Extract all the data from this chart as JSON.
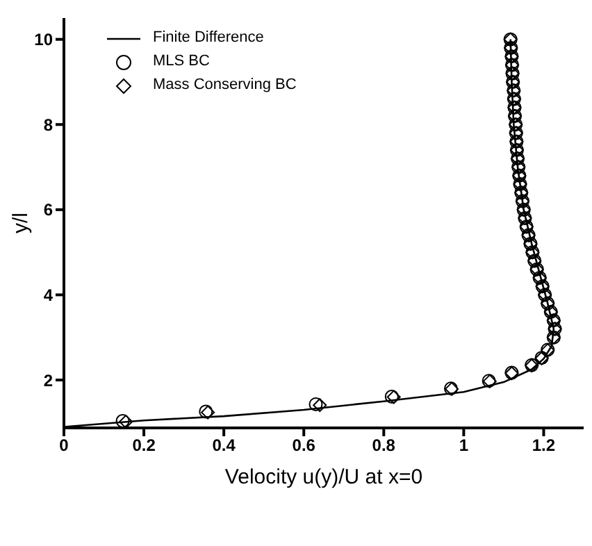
{
  "chart_data": {
    "type": "line",
    "xlabel": "Velocity u(y)/U at x=0",
    "ylabel": "y/l",
    "xlim": [
      0,
      1.3
    ],
    "xticks": [
      0,
      0.2,
      0.4,
      0.6,
      0.8,
      1,
      1.2
    ],
    "ylim": [
      0.875,
      10.5
    ],
    "yticks": [
      2,
      4,
      6,
      8,
      10
    ],
    "grid": false,
    "legend": "top left",
    "series": [
      {
        "name": "Finite Difference",
        "marker": "none",
        "line_style": "solid",
        "color": "#000000",
        "x": [
          0,
          0.2,
          0.4,
          0.6,
          0.8,
          1.0,
          1.1,
          1.17,
          1.2,
          1.22,
          1.225,
          1.21,
          1.19,
          1.17,
          1.15,
          1.135,
          1.125,
          1.12,
          1.117
        ],
        "values": [
          0.9,
          1.05,
          1.15,
          1.3,
          1.5,
          1.72,
          1.95,
          2.25,
          2.5,
          2.8,
          3.2,
          3.8,
          4.5,
          5.2,
          6,
          7,
          8,
          9,
          10
        ]
      },
      {
        "name": "MLS BC",
        "type": "scatter",
        "marker": "circle",
        "color": "#000000",
        "x": [
          0.147,
          0.355,
          0.63,
          0.82,
          0.968,
          1.063,
          1.12,
          1.17,
          1.195,
          1.21,
          1.225,
          1.228,
          1.225,
          1.218,
          1.21,
          1.203,
          1.197,
          1.19,
          1.183,
          1.177,
          1.172,
          1.167,
          1.162,
          1.157,
          1.153,
          1.15,
          1.147,
          1.144,
          1.141,
          1.139,
          1.137,
          1.135,
          1.133,
          1.132,
          1.131,
          1.13,
          1.128,
          1.127,
          1.126,
          1.125,
          1.123,
          1.122,
          1.121,
          1.12,
          1.118,
          1.117
        ],
        "values": [
          1.04,
          1.26,
          1.43,
          1.61,
          1.8,
          1.98,
          2.17,
          2.35,
          2.52,
          2.71,
          3.0,
          3.2,
          3.4,
          3.6,
          3.8,
          4.0,
          4.2,
          4.4,
          4.6,
          4.8,
          5.0,
          5.2,
          5.4,
          5.6,
          5.8,
          6.0,
          6.2,
          6.4,
          6.6,
          6.8,
          7.0,
          7.2,
          7.4,
          7.6,
          7.8,
          8.0,
          8.2,
          8.4,
          8.6,
          8.8,
          9.0,
          9.2,
          9.4,
          9.6,
          9.8,
          10.0
        ]
      },
      {
        "name": "Mass Conserving BC",
        "type": "scatter",
        "marker": "diamond",
        "color": "#000000",
        "x": [
          0.155,
          0.36,
          0.64,
          0.825,
          0.97,
          1.065,
          1.12,
          1.17,
          1.195,
          1.21,
          1.225,
          1.228,
          1.225,
          1.218,
          1.21,
          1.203,
          1.197,
          1.19,
          1.183,
          1.177,
          1.172,
          1.167,
          1.162,
          1.157,
          1.153,
          1.15,
          1.147,
          1.144,
          1.141,
          1.139,
          1.137,
          1.135,
          1.133,
          1.132,
          1.131,
          1.13,
          1.128,
          1.127,
          1.126,
          1.125,
          1.123,
          1.122,
          1.121,
          1.12,
          1.118,
          1.117
        ],
        "values": [
          1.02,
          1.24,
          1.41,
          1.6,
          1.79,
          1.97,
          2.16,
          2.34,
          2.51,
          2.7,
          3.0,
          3.2,
          3.4,
          3.6,
          3.8,
          4.0,
          4.2,
          4.4,
          4.6,
          4.8,
          5.0,
          5.2,
          5.4,
          5.6,
          5.8,
          6.0,
          6.2,
          6.4,
          6.6,
          6.8,
          7.0,
          7.2,
          7.4,
          7.6,
          7.8,
          8.0,
          8.2,
          8.4,
          8.6,
          8.8,
          9.0,
          9.2,
          9.4,
          9.6,
          9.8,
          10.0
        ]
      }
    ]
  }
}
